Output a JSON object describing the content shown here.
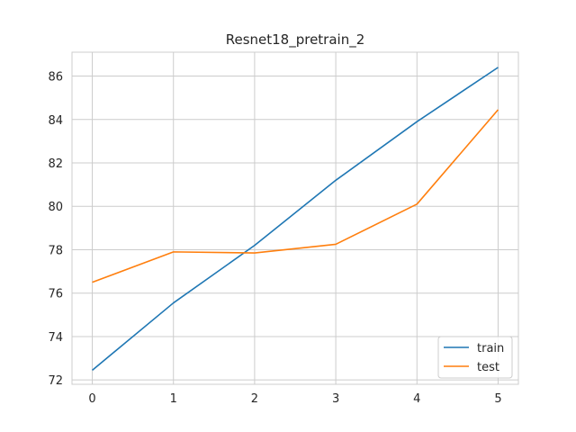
{
  "chart_data": {
    "type": "line",
    "title": "Resnet18_pretrain_2",
    "xlabel": "",
    "ylabel": "",
    "x": [
      0,
      1,
      2,
      3,
      4,
      5
    ],
    "xlim": [
      -0.25,
      5.25
    ],
    "ylim": [
      71.8,
      87.1
    ],
    "xticks": [
      0,
      1,
      2,
      3,
      4,
      5
    ],
    "yticks": [
      72,
      74,
      76,
      78,
      80,
      82,
      84,
      86
    ],
    "grid": true,
    "legend_position": "bottom-right",
    "series": [
      {
        "name": "train",
        "color": "#1f77b4",
        "values": [
          72.45,
          75.55,
          78.2,
          81.2,
          83.9,
          86.4
        ]
      },
      {
        "name": "test",
        "color": "#ff7f0e",
        "values": [
          76.5,
          77.9,
          77.85,
          78.25,
          80.1,
          84.45
        ]
      }
    ]
  }
}
